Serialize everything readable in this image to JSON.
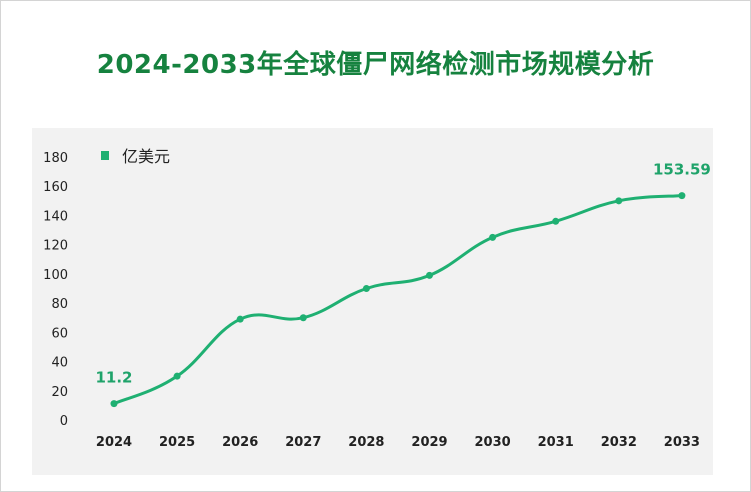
{
  "title": "2024-2033年全球僵尸网络检测市场规模分析",
  "chart_data": {
    "type": "line",
    "title": "2024-2033年全球僵尸网络检测市场规模分析",
    "x": [
      "2024",
      "2025",
      "2026",
      "2027",
      "2028",
      "2029",
      "2030",
      "2031",
      "2032",
      "2033"
    ],
    "series": [
      {
        "name": "亿美元",
        "values": [
          11.2,
          30,
          69,
          70,
          90,
          99,
          125,
          136,
          150,
          153.59
        ]
      }
    ],
    "data_labels": [
      {
        "index": 0,
        "text": "11.2"
      },
      {
        "index": 9,
        "text": "153.59"
      }
    ],
    "yticks": [
      "0",
      "20",
      "40",
      "60",
      "80",
      "100",
      "120",
      "140",
      "160",
      "180"
    ],
    "ylim": [
      0,
      180
    ],
    "xlabel": "",
    "ylabel": "",
    "grid": false,
    "legend": "top-left",
    "color": "#1fb072"
  }
}
